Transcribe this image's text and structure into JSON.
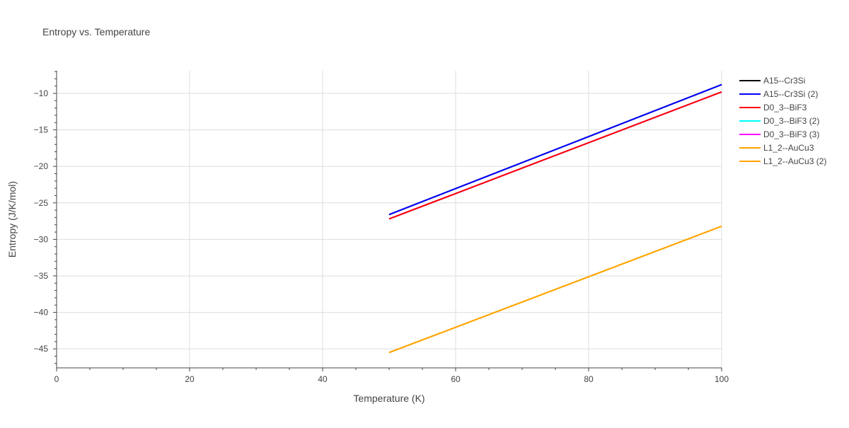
{
  "chart_data": {
    "type": "line",
    "title": "Entropy vs. Temperature",
    "xlabel": "Temperature (K)",
    "ylabel": "Entropy (J/K/mol)",
    "xlim": [
      0,
      100
    ],
    "ylim": [
      -47.6,
      -6.9
    ],
    "x_ticks": [
      0,
      20,
      40,
      60,
      80,
      100
    ],
    "y_ticks": [
      -45,
      -40,
      -35,
      -30,
      -25,
      -20,
      -15,
      -10
    ],
    "x_tick_labels": [
      "0",
      "20",
      "40",
      "60",
      "80",
      "100"
    ],
    "y_tick_labels": [
      "−45",
      "−40",
      "−35",
      "−30",
      "−25",
      "−20",
      "−15",
      "−10"
    ],
    "grid": true,
    "legend_position": "top-right",
    "series": [
      {
        "name": "A15--Cr3Si",
        "color": "#000000",
        "x": [
          50,
          100
        ],
        "y": [
          -26.6,
          -8.8
        ]
      },
      {
        "name": "A15--Cr3Si (2)",
        "color": "#0000ff",
        "x": [
          50,
          100
        ],
        "y": [
          -26.6,
          -8.8
        ]
      },
      {
        "name": "D0_3--BiF3",
        "color": "#ff0000",
        "x": [
          50,
          100
        ],
        "y": [
          -27.2,
          -9.8
        ]
      },
      {
        "name": "D0_3--BiF3 (2)",
        "color": "#00ffff",
        "x": [
          50,
          100
        ],
        "y": [
          -27.2,
          -9.8
        ]
      },
      {
        "name": "D0_3--BiF3 (3)",
        "color": "#ff00ff",
        "x": [
          50,
          100
        ],
        "y": [
          -27.2,
          -9.8
        ]
      },
      {
        "name": "L1_2--AuCu3",
        "color": "#ffa500",
        "x": [
          50,
          100
        ],
        "y": [
          -45.5,
          -28.2
        ]
      },
      {
        "name": "L1_2--AuCu3 (2)",
        "color": "#ffa500",
        "x": [
          50,
          100
        ],
        "y": [
          -45.5,
          -28.2
        ]
      }
    ],
    "draw_order": [
      0,
      3,
      4,
      6,
      5,
      2,
      1
    ]
  },
  "colors": {
    "text": "#444444",
    "title": "#444444",
    "grid": "#dddddd",
    "axis_line": "#444444"
  }
}
